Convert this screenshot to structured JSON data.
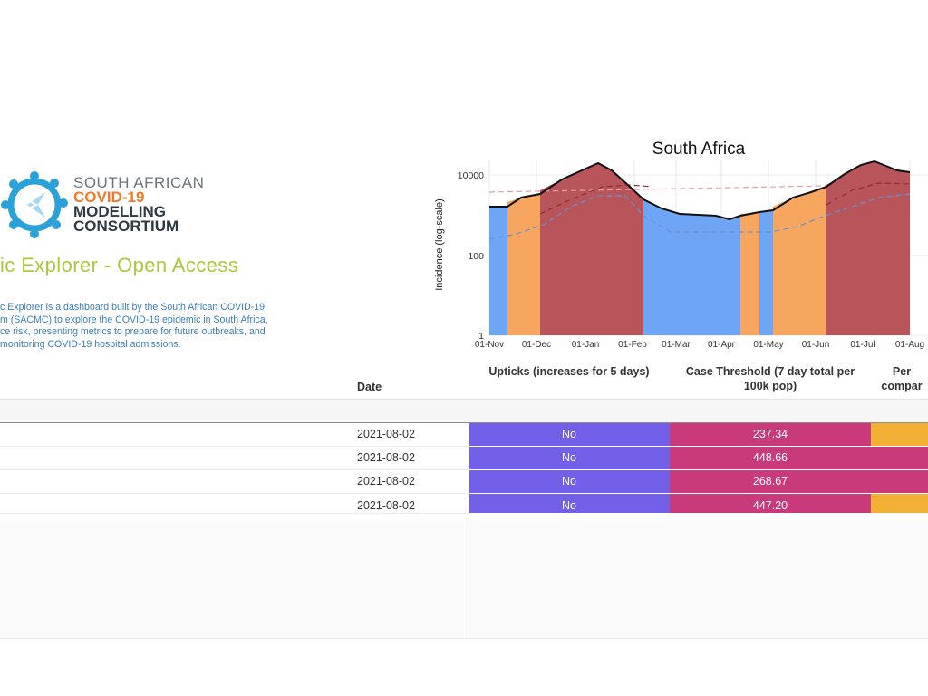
{
  "brand": {
    "line1": "SOUTH AFRICAN",
    "line2": "COVID-19",
    "line3": "MODELLING",
    "line4": "CONSORTIUM"
  },
  "page": {
    "title": "ic Explorer - Open Access",
    "description": [
      "c Explorer is a dashboard built by the South African COVID-19",
      "m (SACMC) to explore the COVID-19 epidemic in South Africa,",
      "ce risk, presenting metrics to prepare for future outbreaks, and",
      "monitoring COVID-19 hospital admissions."
    ]
  },
  "chart": {
    "title": "South Africa",
    "ylabel": "Incidence (log-scale)",
    "yticks": [
      "10000",
      "100",
      "1"
    ],
    "xticks": [
      "01-Nov",
      "01-Dec",
      "01-Jan",
      "01-Feb",
      "01-Mar",
      "01-Apr",
      "01-May",
      "01-Jun",
      "01-Jul",
      "01-Aug"
    ]
  },
  "table": {
    "headers": {
      "date": "Date",
      "upticks": "Upticks (increases for 5 days)",
      "threshold": "Case Threshold (7 day total per 100k pop)",
      "percent": "Per compar"
    },
    "rows": [
      {
        "date": "2021-08-02",
        "upticks": "No",
        "threshold": "237.34",
        "percent_color": "#f2b134"
      },
      {
        "date": "2021-08-02",
        "upticks": "No",
        "threshold": "448.66",
        "percent_color": "#c93a7a"
      },
      {
        "date": "2021-08-02",
        "upticks": "No",
        "threshold": "268.67",
        "percent_color": "#c93a7a"
      },
      {
        "date": "2021-08-02",
        "upticks": "No",
        "threshold": "447.20",
        "percent_color": "#f2b134"
      }
    ]
  },
  "colors": {
    "upticks": "#7360e8",
    "threshold": "#c93a7a",
    "blue_phase": "#6ea6f5",
    "orange_phase": "#f6a65f",
    "red_phase": "#b8555b"
  },
  "chart_data": {
    "type": "area",
    "title": "South Africa",
    "xlabel": "",
    "ylabel": "Incidence (log-scale)",
    "yscale": "log",
    "ylim": [
      1,
      20000
    ],
    "x": [
      "01-Nov",
      "15-Nov",
      "01-Dec",
      "15-Dec",
      "01-Jan",
      "10-Jan",
      "01-Feb",
      "15-Feb",
      "01-Mar",
      "15-Mar",
      "01-Apr",
      "15-Apr",
      "01-May",
      "15-May",
      "01-Jun",
      "15-Jun",
      "01-Jul",
      "15-Jul",
      "01-Aug"
    ],
    "series": [
      {
        "name": "Incidence",
        "values": [
          1600,
          2000,
          3000,
          4800,
          10000,
          14000,
          6000,
          2000,
          1300,
          1200,
          1000,
          1100,
          1300,
          2500,
          3500,
          6000,
          12000,
          15000,
          11000
        ]
      },
      {
        "name": "Upper threshold (dashed red)",
        "values": [
          3900,
          3900,
          3900,
          3900,
          3900,
          3900,
          3900,
          3900,
          3900,
          3900,
          3900,
          3900,
          3900,
          3900,
          3900,
          3900,
          3900,
          3900,
          3900
        ]
      }
    ],
    "phases": [
      "blue",
      "orange",
      "red",
      "blue",
      "orange",
      "blue",
      "orange",
      "red"
    ]
  }
}
